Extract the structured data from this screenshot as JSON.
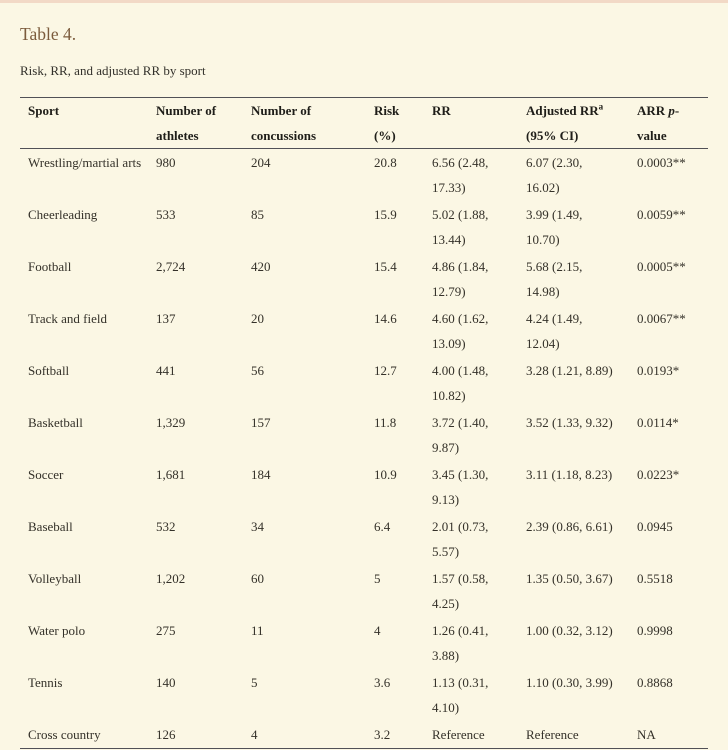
{
  "page": {
    "title": "Table 4.",
    "caption": "Risk, RR, and adjusted RR by sport"
  },
  "colors": {
    "page_background": "#fbf7e4",
    "top_strip": "#f2d9c6",
    "title_brown": "#7b5b3c",
    "header_text": "#1f1e19",
    "body_text": "#343129",
    "rule_gray": "#515156"
  },
  "table": {
    "headers": {
      "sport": "Sport",
      "athletes": "Number of athletes",
      "concussions": "Number of concussions",
      "risk": "Risk (%)",
      "rr": "RR",
      "adjusted_rr": {
        "main": "Adjusted RR",
        "sup": "a",
        "rest": " (95% CI)"
      },
      "arr_p": {
        "pre": "ARR ",
        "p": "p",
        "post": "-value"
      }
    },
    "rows": [
      {
        "sport": "Wrestling/martial arts",
        "athletes": "980",
        "concussions": "204",
        "risk": "20.8",
        "rr": "6.56 (2.48, 17.33)",
        "adjusted_rr": "6.07 (2.30, 16.02)",
        "arr_p": "0.0003**"
      },
      {
        "sport": "Cheerleading",
        "athletes": "533",
        "concussions": "85",
        "risk": "15.9",
        "rr": "5.02 (1.88, 13.44)",
        "adjusted_rr": "3.99 (1.49, 10.70)",
        "arr_p": "0.0059**"
      },
      {
        "sport": "Football",
        "athletes": "2,724",
        "concussions": "420",
        "risk": "15.4",
        "rr": "4.86 (1.84, 12.79)",
        "adjusted_rr": "5.68 (2.15, 14.98)",
        "arr_p": "0.0005**"
      },
      {
        "sport": "Track and field",
        "athletes": "137",
        "concussions": "20",
        "risk": "14.6",
        "rr": "4.60 (1.62, 13.09)",
        "adjusted_rr": "4.24 (1.49, 12.04)",
        "arr_p": "0.0067**"
      },
      {
        "sport": "Softball",
        "athletes": "441",
        "concussions": "56",
        "risk": "12.7",
        "rr": "4.00 (1.48, 10.82)",
        "adjusted_rr": "3.28 (1.21, 8.89)",
        "arr_p": "0.0193*"
      },
      {
        "sport": "Basketball",
        "athletes": "1,329",
        "concussions": "157",
        "risk": "11.8",
        "rr": "3.72 (1.40, 9.87)",
        "adjusted_rr": "3.52 (1.33, 9.32)",
        "arr_p": "0.0114*"
      },
      {
        "sport": "Soccer",
        "athletes": "1,681",
        "concussions": "184",
        "risk": "10.9",
        "rr": "3.45 (1.30, 9.13)",
        "adjusted_rr": "3.11 (1.18, 8.23)",
        "arr_p": "0.0223*"
      },
      {
        "sport": "Baseball",
        "athletes": "532",
        "concussions": "34",
        "risk": "6.4",
        "rr": "2.01 (0.73, 5.57)",
        "adjusted_rr": "2.39 (0.86, 6.61)",
        "arr_p": "0.0945"
      },
      {
        "sport": "Volleyball",
        "athletes": "1,202",
        "concussions": "60",
        "risk": "5",
        "rr": "1.57 (0.58, 4.25)",
        "adjusted_rr": "1.35 (0.50, 3.67)",
        "arr_p": "0.5518"
      },
      {
        "sport": "Water polo",
        "athletes": "275",
        "concussions": "11",
        "risk": "4",
        "rr": "1.26 (0.41, 3.88)",
        "adjusted_rr": "1.00 (0.32, 3.12)",
        "arr_p": "0.9998"
      },
      {
        "sport": "Tennis",
        "athletes": "140",
        "concussions": "5",
        "risk": "3.6",
        "rr": "1.13 (0.31, 4.10)",
        "adjusted_rr": "1.10 (0.30, 3.99)",
        "arr_p": "0.8868"
      },
      {
        "sport": "Cross country",
        "athletes": "126",
        "concussions": "4",
        "risk": "3.2",
        "rr": "Reference",
        "adjusted_rr": "Reference",
        "arr_p": "NA"
      }
    ]
  }
}
